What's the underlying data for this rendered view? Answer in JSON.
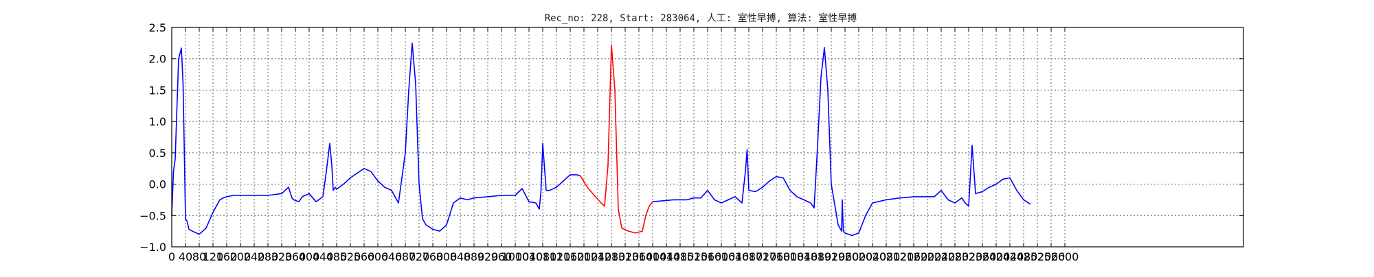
{
  "chart_data": {
    "type": "line",
    "title": "Rec_no: 228, Start: 283064, 人工: 室性早搏, 算法: 室性早搏",
    "xlabel": "",
    "ylabel": "",
    "xlim": [
      0,
      3120
    ],
    "ylim": [
      -1.0,
      2.5
    ],
    "grid": true,
    "y_ticks": [
      "−1.0",
      "−0.5",
      "0.0",
      "0.5",
      "1.0",
      "1.5",
      "2.0",
      "2.5"
    ],
    "y_tick_values": [
      -1.0,
      -0.5,
      0.0,
      0.5,
      1.0,
      1.5,
      2.0,
      2.5
    ],
    "x_tick_values": [
      0,
      40,
      80,
      120,
      160,
      200,
      240,
      280,
      320,
      360,
      400,
      440,
      480,
      520,
      560,
      600,
      640,
      680,
      720,
      760,
      800,
      840,
      880,
      920,
      960,
      1000,
      1040,
      1080,
      1120,
      1160,
      1200,
      1240,
      1280,
      1320,
      1360,
      1400,
      1440,
      1480,
      1520,
      1560,
      1600,
      1640,
      1680,
      1720,
      1760,
      1800,
      1840,
      1880,
      1920,
      1960,
      2000,
      2040,
      2080,
      2120,
      2160,
      2200,
      2240,
      2280,
      2320,
      2360,
      2400,
      2440,
      2480,
      2520,
      2560,
      2600
    ],
    "x_ticks": [
      "0",
      "40",
      "80",
      "120",
      "160",
      "200",
      "240",
      "280",
      "320",
      "360",
      "400",
      "440",
      "480",
      "520",
      "560",
      "600",
      "640",
      "680",
      "720",
      "760",
      "800",
      "840",
      "880",
      "920",
      "960",
      "1000",
      "1040",
      "1080",
      "1120",
      "1160",
      "1200",
      "1240",
      "1280",
      "1320",
      "1360",
      "1400",
      "1440",
      "1480",
      "1520",
      "1560",
      "1600",
      "1640",
      "1680",
      "1720",
      "1760",
      "1800",
      "1840",
      "1880",
      "1920",
      "1960",
      "2000",
      "2040",
      "2080",
      "2120",
      "2160",
      "2200",
      "2240",
      "2280",
      "2320",
      "2360",
      "2400",
      "2440",
      "2480",
      "2520",
      "2560",
      "2600"
    ],
    "series": [
      {
        "color": "#0000ff",
        "x": [
          0,
          5,
          10,
          20,
          28,
          33,
          40,
          45,
          50,
          60,
          80,
          100,
          120,
          140,
          150,
          160,
          180,
          200,
          240,
          280,
          320,
          340,
          350,
          355,
          370,
          380,
          400,
          420,
          440,
          450,
          460,
          466,
          470,
          476,
          480,
          500,
          520,
          560,
          580,
          600,
          620,
          640,
          660,
          680,
          690,
          700,
          710,
          720,
          730,
          740,
          760,
          780,
          800,
          820,
          840,
          860,
          880,
          920,
          960,
          1000,
          1020,
          1040,
          1060,
          1070,
          1075,
          1080,
          1090,
          1100,
          1120,
          1140,
          1160,
          1180,
          1190
        ],
        "y": [
          -0.5,
          0.2,
          0.4,
          2.0,
          2.17,
          1.6,
          -0.55,
          -0.6,
          -0.72,
          -0.75,
          -0.8,
          -0.7,
          -0.45,
          -0.25,
          -0.22,
          -0.2,
          -0.18,
          -0.18,
          -0.18,
          -0.18,
          -0.15,
          -0.05,
          -0.22,
          -0.25,
          -0.28,
          -0.2,
          -0.15,
          -0.28,
          -0.2,
          0.2,
          0.65,
          0.3,
          -0.1,
          -0.05,
          -0.08,
          0.0,
          0.1,
          0.25,
          0.2,
          0.05,
          -0.05,
          -0.1,
          -0.3,
          0.5,
          1.5,
          2.25,
          1.6,
          0.0,
          -0.55,
          -0.65,
          -0.72,
          -0.75,
          -0.65,
          -0.3,
          -0.22,
          -0.25,
          -0.22,
          -0.2,
          -0.18,
          -0.18,
          -0.07,
          -0.28,
          -0.3,
          -0.4,
          -0.1,
          0.65,
          -0.1,
          -0.1,
          -0.05,
          0.05,
          0.15,
          0.15,
          0.13
        ]
      },
      {
        "color": "#ff0000",
        "x": [
          1190,
          1210,
          1230,
          1250,
          1260,
          1270,
          1280,
          1290,
          1300,
          1310,
          1330,
          1350,
          1370,
          1380,
          1390,
          1400
        ],
        "y": [
          0.13,
          -0.05,
          -0.18,
          -0.3,
          -0.35,
          0.3,
          2.22,
          1.5,
          -0.4,
          -0.7,
          -0.75,
          -0.78,
          -0.75,
          -0.5,
          -0.35,
          -0.28
        ]
      },
      {
        "color": "#0000ff",
        "x": [
          1400,
          1420,
          1460,
          1500,
          1520,
          1540,
          1560,
          1580,
          1600,
          1620,
          1640,
          1660,
          1670,
          1675,
          1680,
          1700,
          1720,
          1740,
          1760,
          1780,
          1800,
          1820,
          1840,
          1860,
          1870,
          1880,
          1890,
          1900,
          1910,
          1920,
          1940,
          1950,
          1952,
          1955,
          1960,
          1980,
          2000,
          2020,
          2040,
          2080,
          2120,
          2160,
          2200,
          2220,
          2240,
          2260,
          2280,
          2300,
          2310,
          2320,
          2330,
          2340,
          2360,
          2380,
          2400,
          2420,
          2440,
          2460,
          2480,
          2500
        ],
        "y": [
          -0.28,
          -0.27,
          -0.25,
          -0.25,
          -0.22,
          -0.22,
          -0.1,
          -0.25,
          -0.3,
          -0.25,
          -0.2,
          -0.3,
          0.2,
          0.55,
          -0.1,
          -0.12,
          -0.05,
          0.05,
          0.12,
          0.1,
          -0.1,
          -0.2,
          -0.25,
          -0.3,
          -0.38,
          0.6,
          1.7,
          2.18,
          1.5,
          0.0,
          -0.65,
          -0.75,
          -0.25,
          -0.75,
          -0.78,
          -0.82,
          -0.78,
          -0.5,
          -0.3,
          -0.25,
          -0.22,
          -0.2,
          -0.2,
          -0.2,
          -0.1,
          -0.25,
          -0.3,
          -0.22,
          -0.3,
          -0.35,
          0.62,
          -0.15,
          -0.12,
          -0.05,
          0.0,
          0.08,
          0.1,
          -0.1,
          -0.25,
          -0.32
        ]
      }
    ]
  }
}
